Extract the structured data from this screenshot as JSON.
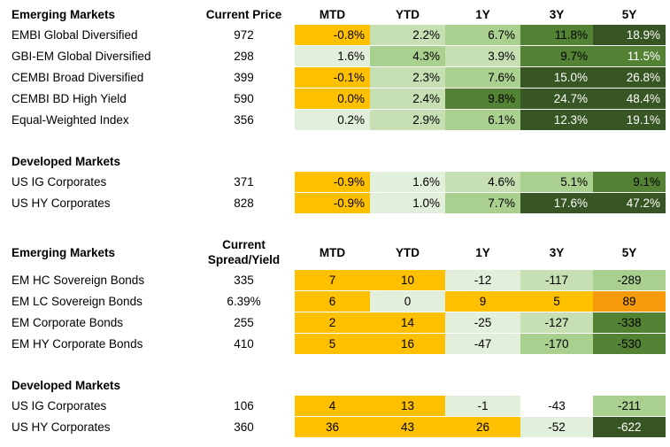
{
  "colors": {
    "negative_orange": "#ffc000",
    "strong_orange": "#f79b0d",
    "very_light_green": "#e2efda",
    "light_green": "#c6e0b4",
    "mid_green": "#a9d08e",
    "green": "#548235",
    "dark_green": "#375623"
  },
  "price_table": {
    "columns": [
      "MTD",
      "YTD",
      "1Y",
      "3Y",
      "5Y"
    ],
    "sections": [
      {
        "title": "Emerging Markets",
        "current_label": "Current Price",
        "rows": [
          {
            "name": "EMBI Global Diversified",
            "current": "972",
            "cells": [
              {
                "v": "-0.8%",
                "c": "#ffc000"
              },
              {
                "v": "2.2%",
                "c": "#c6e0b4"
              },
              {
                "v": "6.7%",
                "c": "#a9d08e"
              },
              {
                "v": "11.8%",
                "c": "#548235"
              },
              {
                "v": "18.9%",
                "c": "#375623",
                "w": true
              }
            ]
          },
          {
            "name": "GBI-EM Global Diversified",
            "current": "298",
            "cells": [
              {
                "v": "1.6%",
                "c": "#e2efda"
              },
              {
                "v": "4.3%",
                "c": "#a9d08e"
              },
              {
                "v": "3.9%",
                "c": "#c6e0b4"
              },
              {
                "v": "9.7%",
                "c": "#548235"
              },
              {
                "v": "11.5%",
                "c": "#548235",
                "w": true
              }
            ]
          },
          {
            "name": "CEMBI Broad Diversified",
            "current": "399",
            "cells": [
              {
                "v": "-0.1%",
                "c": "#ffc000"
              },
              {
                "v": "2.3%",
                "c": "#c6e0b4"
              },
              {
                "v": "7.6%",
                "c": "#a9d08e"
              },
              {
                "v": "15.0%",
                "c": "#375623",
                "w": true
              },
              {
                "v": "26.8%",
                "c": "#375623",
                "w": true
              }
            ]
          },
          {
            "name": "CEMBI BD High Yield",
            "current": "590",
            "cells": [
              {
                "v": "0.0%",
                "c": "#ffc000"
              },
              {
                "v": "2.4%",
                "c": "#c6e0b4"
              },
              {
                "v": "9.8%",
                "c": "#548235"
              },
              {
                "v": "24.7%",
                "c": "#375623",
                "w": true
              },
              {
                "v": "48.4%",
                "c": "#375623",
                "w": true
              }
            ]
          },
          {
            "name": "Equal-Weighted Index",
            "current": "356",
            "cells": [
              {
                "v": "0.2%",
                "c": "#e2efda"
              },
              {
                "v": "2.9%",
                "c": "#c6e0b4"
              },
              {
                "v": "6.1%",
                "c": "#a9d08e"
              },
              {
                "v": "12.3%",
                "c": "#375623",
                "w": true
              },
              {
                "v": "19.1%",
                "c": "#375623",
                "w": true
              }
            ]
          }
        ]
      },
      {
        "title": "Developed Markets",
        "rows": [
          {
            "name": "US IG Corporates",
            "current": "371",
            "cells": [
              {
                "v": "-0.9%",
                "c": "#ffc000"
              },
              {
                "v": "1.6%",
                "c": "#e2efda"
              },
              {
                "v": "4.6%",
                "c": "#c6e0b4"
              },
              {
                "v": "5.1%",
                "c": "#a9d08e"
              },
              {
                "v": "9.1%",
                "c": "#548235"
              }
            ]
          },
          {
            "name": "US HY Corporates",
            "current": "828",
            "cells": [
              {
                "v": "-0.9%",
                "c": "#ffc000"
              },
              {
                "v": "1.0%",
                "c": "#e2efda"
              },
              {
                "v": "7.7%",
                "c": "#a9d08e"
              },
              {
                "v": "17.6%",
                "c": "#375623",
                "w": true
              },
              {
                "v": "47.2%",
                "c": "#375623",
                "w": true
              }
            ]
          }
        ]
      }
    ]
  },
  "spread_table": {
    "columns": [
      "MTD",
      "YTD",
      "1Y",
      "3Y",
      "5Y"
    ],
    "sections": [
      {
        "title": "Emerging Markets",
        "current_label_line1": "Current",
        "current_label_line2": "Spread/Yield",
        "rows": [
          {
            "name": "EM HC Sovereign Bonds",
            "current": "335",
            "cells": [
              {
                "v": "7",
                "c": "#ffc000"
              },
              {
                "v": "10",
                "c": "#ffc000"
              },
              {
                "v": "-12",
                "c": "#e2efda"
              },
              {
                "v": "-117",
                "c": "#c6e0b4"
              },
              {
                "v": "-289",
                "c": "#a9d08e"
              }
            ]
          },
          {
            "name": "EM LC Sovereign Bonds",
            "current": "6.39%",
            "cells": [
              {
                "v": "6",
                "c": "#ffc000"
              },
              {
                "v": "0",
                "c": "#e2efda"
              },
              {
                "v": "9",
                "c": "#ffc000"
              },
              {
                "v": "5",
                "c": "#ffc000"
              },
              {
                "v": "89",
                "c": "#f79b0d"
              }
            ]
          },
          {
            "name": "EM Corporate Bonds",
            "current": "255",
            "cells": [
              {
                "v": "2",
                "c": "#ffc000"
              },
              {
                "v": "14",
                "c": "#ffc000"
              },
              {
                "v": "-25",
                "c": "#e2efda"
              },
              {
                "v": "-127",
                "c": "#c6e0b4"
              },
              {
                "v": "-338",
                "c": "#548235"
              }
            ]
          },
          {
            "name": "EM HY Corporate Bonds",
            "current": "410",
            "cells": [
              {
                "v": "5",
                "c": "#ffc000"
              },
              {
                "v": "16",
                "c": "#ffc000"
              },
              {
                "v": "-47",
                "c": "#e2efda"
              },
              {
                "v": "-170",
                "c": "#a9d08e"
              },
              {
                "v": "-530",
                "c": "#548235"
              }
            ]
          }
        ]
      },
      {
        "title": "Developed Markets",
        "rows": [
          {
            "name": "US IG Corporates",
            "current": "106",
            "cells": [
              {
                "v": "4",
                "c": "#ffc000"
              },
              {
                "v": "13",
                "c": "#ffc000"
              },
              {
                "v": "-1",
                "c": "#e2efda"
              },
              {
                "v": "-43",
                "c": "#ffffff"
              },
              {
                "v": "-211",
                "c": "#a9d08e"
              }
            ]
          },
          {
            "name": "US HY Corporates",
            "current": "360",
            "cells": [
              {
                "v": "36",
                "c": "#ffc000"
              },
              {
                "v": "43",
                "c": "#ffc000"
              },
              {
                "v": "26",
                "c": "#ffc000"
              },
              {
                "v": "-52",
                "c": "#e2efda"
              },
              {
                "v": "-622",
                "c": "#375623",
                "w": true
              }
            ]
          }
        ]
      }
    ]
  }
}
